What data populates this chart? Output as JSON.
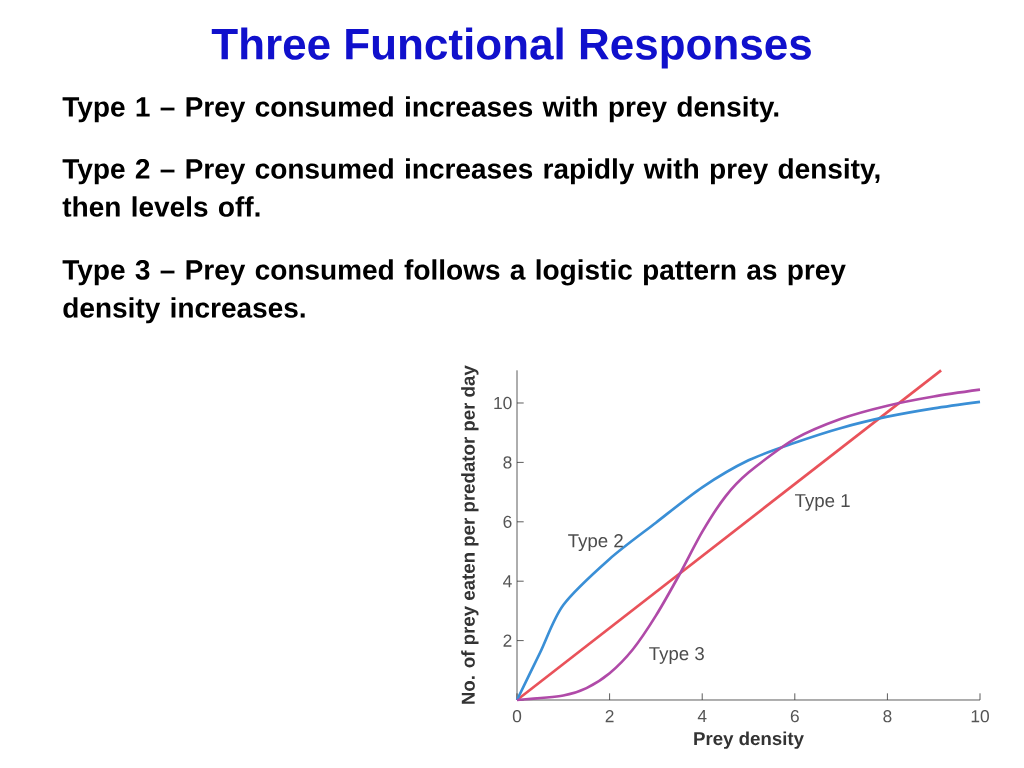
{
  "chart_data": {
    "type": "line",
    "title": "Three Functional Responses",
    "annotations": [
      "Type 1 – Prey consumed increases with prey density.",
      "Type 2 – Prey consumed increases rapidly with prey density, then levels off.",
      "Type 3 – Prey consumed follows a logistic pattern as prey density increases."
    ],
    "xlabel": "Prey density",
    "ylabel": "No. of prey eaten per predator per day",
    "xlim": [
      0,
      10
    ],
    "ylim": [
      0,
      11.1
    ],
    "xticks": [
      0,
      2,
      4,
      6,
      8,
      10
    ],
    "yticks": [
      {
        "value": 0,
        "label": null
      },
      2,
      4,
      6,
      8,
      10
    ],
    "series": [
      {
        "name": "Type 1",
        "color": "#e9525a",
        "x": [
          0,
          9.16
        ],
        "values": [
          0,
          11.1
        ]
      },
      {
        "name": "Type 2",
        "color": "#3a8fd6",
        "x": [
          0,
          0.5,
          1,
          2,
          3,
          4,
          5,
          6,
          7,
          8,
          9,
          10
        ],
        "values": [
          0,
          1.6,
          3.2,
          4.75,
          5.97,
          7.16,
          8.07,
          8.66,
          9.16,
          9.54,
          9.82,
          10.04
        ]
      },
      {
        "name": "Type 3",
        "color": "#b04aa8",
        "x": [
          0,
          1,
          1.5,
          2,
          2.5,
          3,
          3.5,
          4,
          4.5,
          5,
          6,
          7,
          8,
          9,
          10
        ],
        "values": [
          0,
          0.15,
          0.4,
          0.9,
          1.7,
          2.84,
          4.2,
          5.66,
          6.85,
          7.66,
          8.79,
          9.47,
          9.91,
          10.22,
          10.45
        ]
      }
    ]
  }
}
